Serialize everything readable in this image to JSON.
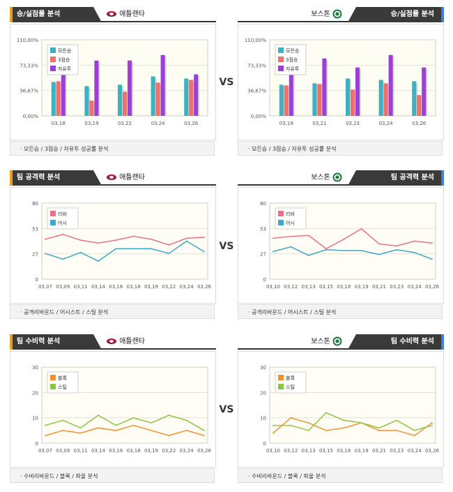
{
  "vs_label": "VS",
  "colors": {
    "teal": "#3cb1c1",
    "red": "#ef6f6f",
    "purple": "#9b3fd6",
    "pink": "#ec6f86",
    "blue": "#3aa9c7",
    "orange": "#f5902b",
    "green": "#8cc63f"
  },
  "panels": [
    {
      "side": "left",
      "title": "승/실점률 분석",
      "team": "애틀랜타",
      "team_icon": "hawks-icon",
      "footer": "· 모든승 / 3점승 / 자유투 성공률 분석"
    },
    {
      "side": "right",
      "title": "승/실점률 분석",
      "team": "보스톤",
      "team_icon": "celtics-icon",
      "footer": "· 모든승 / 3점승 / 자유투 성공률 분석"
    },
    {
      "side": "left",
      "title": "팀 공격력 분석",
      "team": "애틀랜타",
      "team_icon": "hawks-icon",
      "footer": "· 공격리바운드 / 어시스트 / 스틸 분석"
    },
    {
      "side": "right",
      "title": "팀 공격력 분석",
      "team": "보스톤",
      "team_icon": "celtics-icon",
      "footer": "· 공격리바운드 / 어시스트 / 스틸 분석"
    },
    {
      "side": "left",
      "title": "팀 수비력 분석",
      "team": "애틀랜타",
      "team_icon": "hawks-icon",
      "footer": "· 수비리바운드 / 블록 / 파울 분석"
    },
    {
      "side": "right",
      "title": "팀 수비력 분석",
      "team": "보스톤",
      "team_icon": "celtics-icon",
      "footer": "· 수비리바운드 / 블록 / 파울 분석"
    }
  ],
  "chart_data": [
    {
      "type": "bar",
      "categories": [
        "03,18",
        "03,19",
        "03,22",
        "03,24",
        "03,26"
      ],
      "yticks": [
        "0,00%",
        "36,67%",
        "73,33%",
        "110,00%"
      ],
      "ylim": [
        0,
        110
      ],
      "series": [
        {
          "name": "모든승",
          "color": "#3cb1c1",
          "values": [
            49,
            43,
            45,
            57,
            54
          ]
        },
        {
          "name": "3점승",
          "color": "#ef6f6f",
          "values": [
            50,
            22,
            35,
            48,
            52
          ]
        },
        {
          "name": "자유투",
          "color": "#9b3fd6",
          "values": [
            80,
            80,
            80,
            88,
            60
          ]
        }
      ]
    },
    {
      "type": "bar",
      "categories": [
        "03,19",
        "03,21",
        "03,23",
        "03,24",
        "03,26"
      ],
      "yticks": [
        "0,00%",
        "36,67%",
        "73,33%",
        "110,00%"
      ],
      "ylim": [
        0,
        110
      ],
      "series": [
        {
          "name": "모든승",
          "color": "#3cb1c1",
          "values": [
            45,
            47,
            54,
            52,
            50
          ]
        },
        {
          "name": "3점승",
          "color": "#ef6f6f",
          "values": [
            44,
            46,
            38,
            47,
            30
          ]
        },
        {
          "name": "자유투",
          "color": "#9b3fd6",
          "values": [
            70,
            83,
            70,
            88,
            70
          ]
        }
      ]
    },
    {
      "type": "line",
      "categories": [
        "03,07",
        "03,09",
        "03,11",
        "03,14",
        "03,16",
        "03,18",
        "03,19",
        "03,22",
        "03,24",
        "03,26"
      ],
      "yticks": [
        "0",
        "27",
        "53",
        "80"
      ],
      "ylim": [
        0,
        80
      ],
      "series": [
        {
          "name": "리바",
          "color": "#ec6f86",
          "values": [
            42,
            47,
            41,
            38,
            41,
            45,
            42,
            36,
            43,
            44
          ]
        },
        {
          "name": "어시",
          "color": "#3aa9c7",
          "values": [
            27,
            21,
            28,
            19,
            32,
            32,
            32,
            27,
            40,
            29
          ]
        }
      ]
    },
    {
      "type": "line",
      "categories": [
        "03,10",
        "03,12",
        "03,13",
        "03,15",
        "03,18",
        "03,19",
        "03,21",
        "03,23",
        "03,24",
        "03,26"
      ],
      "yticks": [
        "0",
        "27",
        "53",
        "80"
      ],
      "ylim": [
        0,
        80
      ],
      "series": [
        {
          "name": "리바",
          "color": "#ec6f86",
          "values": [
            43,
            45,
            46,
            32,
            42,
            53,
            37,
            35,
            40,
            38
          ]
        },
        {
          "name": "어시",
          "color": "#3aa9c7",
          "values": [
            29,
            34,
            25,
            31,
            30,
            30,
            26,
            31,
            28,
            21
          ]
        }
      ]
    },
    {
      "type": "line",
      "categories": [
        "03,07",
        "03,09",
        "03,11",
        "03,14",
        "03,16",
        "03,18",
        "03,19",
        "03,22",
        "03,24",
        "03,26"
      ],
      "yticks": [
        "0",
        "10",
        "20",
        "30"
      ],
      "ylim": [
        0,
        30
      ],
      "series": [
        {
          "name": "블록",
          "color": "#f5902b",
          "values": [
            3,
            5,
            4,
            6,
            5,
            7,
            5,
            3,
            5,
            3
          ]
        },
        {
          "name": "스틸",
          "color": "#8cc63f",
          "values": [
            7,
            9,
            6,
            11,
            7,
            10,
            8,
            11,
            9,
            5
          ]
        }
      ]
    },
    {
      "type": "line",
      "categories": [
        "03,10",
        "03,12",
        "03,13",
        "03,15",
        "03,18",
        "03,19",
        "03,21",
        "03,23",
        "03,24",
        "03,26"
      ],
      "yticks": [
        "0",
        "10",
        "20",
        "30"
      ],
      "ylim": [
        0,
        30
      ],
      "series": [
        {
          "name": "블록",
          "color": "#f5902b",
          "values": [
            4,
            10,
            8,
            5,
            6,
            8,
            5,
            5,
            3,
            8
          ]
        },
        {
          "name": "스틸",
          "color": "#8cc63f",
          "values": [
            7,
            7,
            5,
            12,
            9,
            8,
            6,
            9,
            5,
            7
          ]
        }
      ]
    }
  ]
}
